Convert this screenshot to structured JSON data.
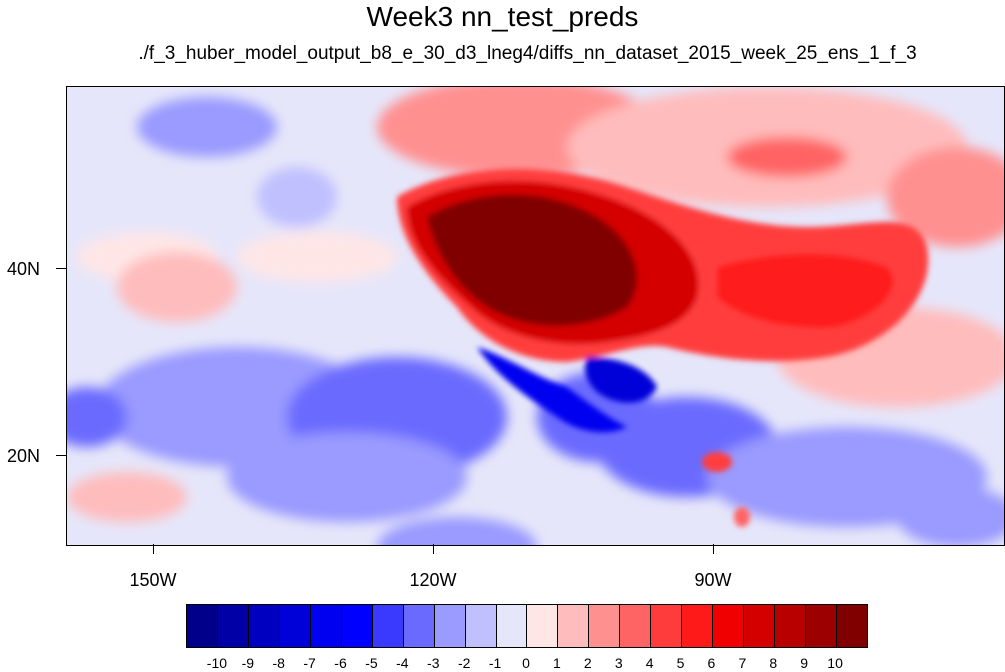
{
  "title": "Week3 nn_test_preds",
  "subtitle": "./f_3_huber_model_output_b8_e_30_d3_lneg4/diffs_nn_dataset_2015_week_25_ens_1_f_3",
  "lat_labels": [
    "40N",
    "20N"
  ],
  "lon_labels": [
    "150W",
    "120W",
    "90W"
  ],
  "map_extent": {
    "lon_min": -159.2,
    "lon_max": -59.2,
    "lat_min": 11,
    "lat_max": 60
  },
  "lat_ticks": [
    40,
    20
  ],
  "lon_ticks": [
    -150,
    -120,
    -90
  ],
  "colorbar": {
    "labels": [
      "-10",
      "-9",
      "-8",
      "-7",
      "-6",
      "-5",
      "-4",
      "-3",
      "-2",
      "-1",
      "0",
      "1",
      "2",
      "3",
      "4",
      "5",
      "6",
      "7",
      "8",
      "9",
      "10"
    ],
    "colors": [
      "#00008b",
      "#0000a6",
      "#0000c0",
      "#0000d9",
      "#0000f0",
      "#0000ff",
      "#3a3aff",
      "#6a6aff",
      "#9a9aff",
      "#c0c0ff",
      "#e6e6fa",
      "#ffe6e6",
      "#ffbcbc",
      "#ff9090",
      "#ff6464",
      "#ff3c3c",
      "#ff1a1a",
      "#f00000",
      "#d40000",
      "#b80000",
      "#9c0000",
      "#800000"
    ]
  }
}
